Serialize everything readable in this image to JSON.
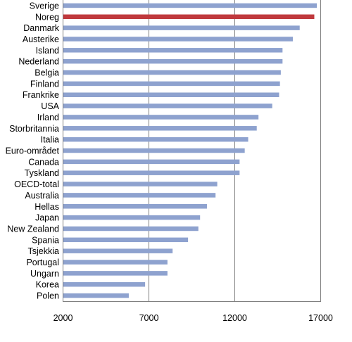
{
  "chart_data": {
    "type": "bar",
    "orientation": "horizontal",
    "categories": [
      "Sverige",
      "Noreg",
      "Danmark",
      "Austerike",
      "Island",
      "Nederland",
      "Belgia",
      "Finland",
      "Frankrike",
      "USA",
      "Irland",
      "Storbritannia",
      "Italia",
      "Euro-området",
      "Canada",
      "Tyskland",
      "OECD-total",
      "Australia",
      "Hellas",
      "Japan",
      "New Zealand",
      "Spania",
      "Tsjekkia",
      "Portugal",
      "Ungarn",
      "Korea",
      "Polen"
    ],
    "values": [
      16800,
      16650,
      15800,
      15400,
      14800,
      14800,
      14700,
      14650,
      14600,
      14200,
      13400,
      13300,
      12800,
      12600,
      12300,
      12300,
      11000,
      10900,
      10400,
      10000,
      9900,
      9300,
      8400,
      8100,
      8100,
      6800,
      5850
    ],
    "highlight": "Noreg",
    "colors": {
      "bar": "#8ea2cf",
      "highlight": "#c0393d"
    },
    "xlim": [
      2000,
      17000
    ],
    "xticks": [
      "2000",
      "7000",
      "12000",
      "17000"
    ],
    "grid": true,
    "title": "",
    "xlabel": "",
    "ylabel": ""
  }
}
